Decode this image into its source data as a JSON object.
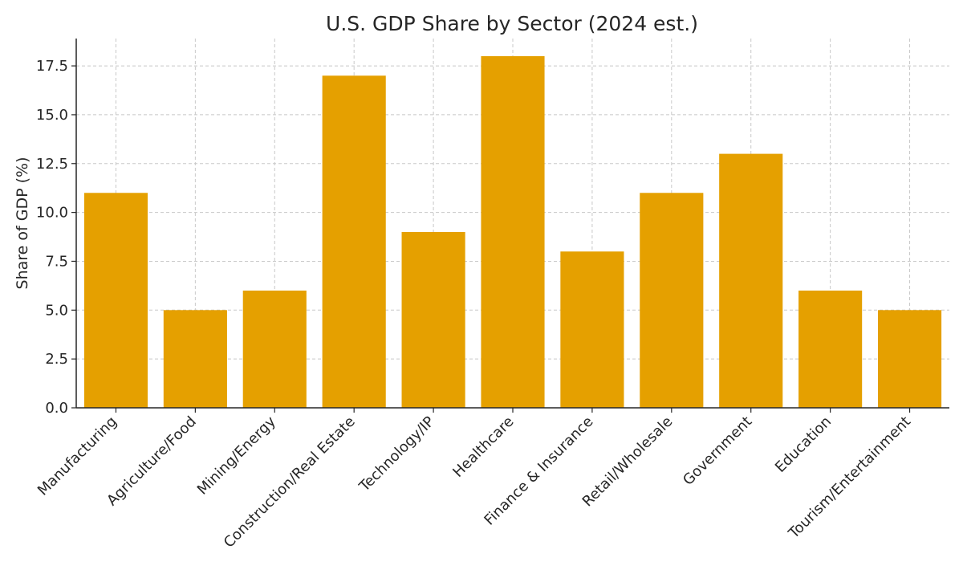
{
  "chart_data": {
    "type": "bar",
    "title": "U.S. GDP Share by Sector (2024 est.)",
    "xlabel": "",
    "ylabel": "Share of GDP (%)",
    "categories": [
      "Manufacturing",
      "Agriculture/Food",
      "Mining/Energy",
      "Construction/Real Estate",
      "Technology/IP",
      "Healthcare",
      "Finance & Insurance",
      "Retail/Wholesale",
      "Government",
      "Education",
      "Tourism/Entertainment"
    ],
    "values": [
      11,
      5,
      6,
      17,
      9,
      18,
      8,
      11,
      13,
      6,
      5
    ],
    "ylim": [
      0,
      18.9
    ],
    "yticks": [
      0.0,
      2.5,
      5.0,
      7.5,
      10.0,
      12.5,
      15.0,
      17.5
    ],
    "ytick_labels": [
      "0.0",
      "2.5",
      "5.0",
      "7.5",
      "10.0",
      "12.5",
      "15.0",
      "17.5"
    ],
    "grid": true,
    "bar_color": "#E5A000"
  }
}
